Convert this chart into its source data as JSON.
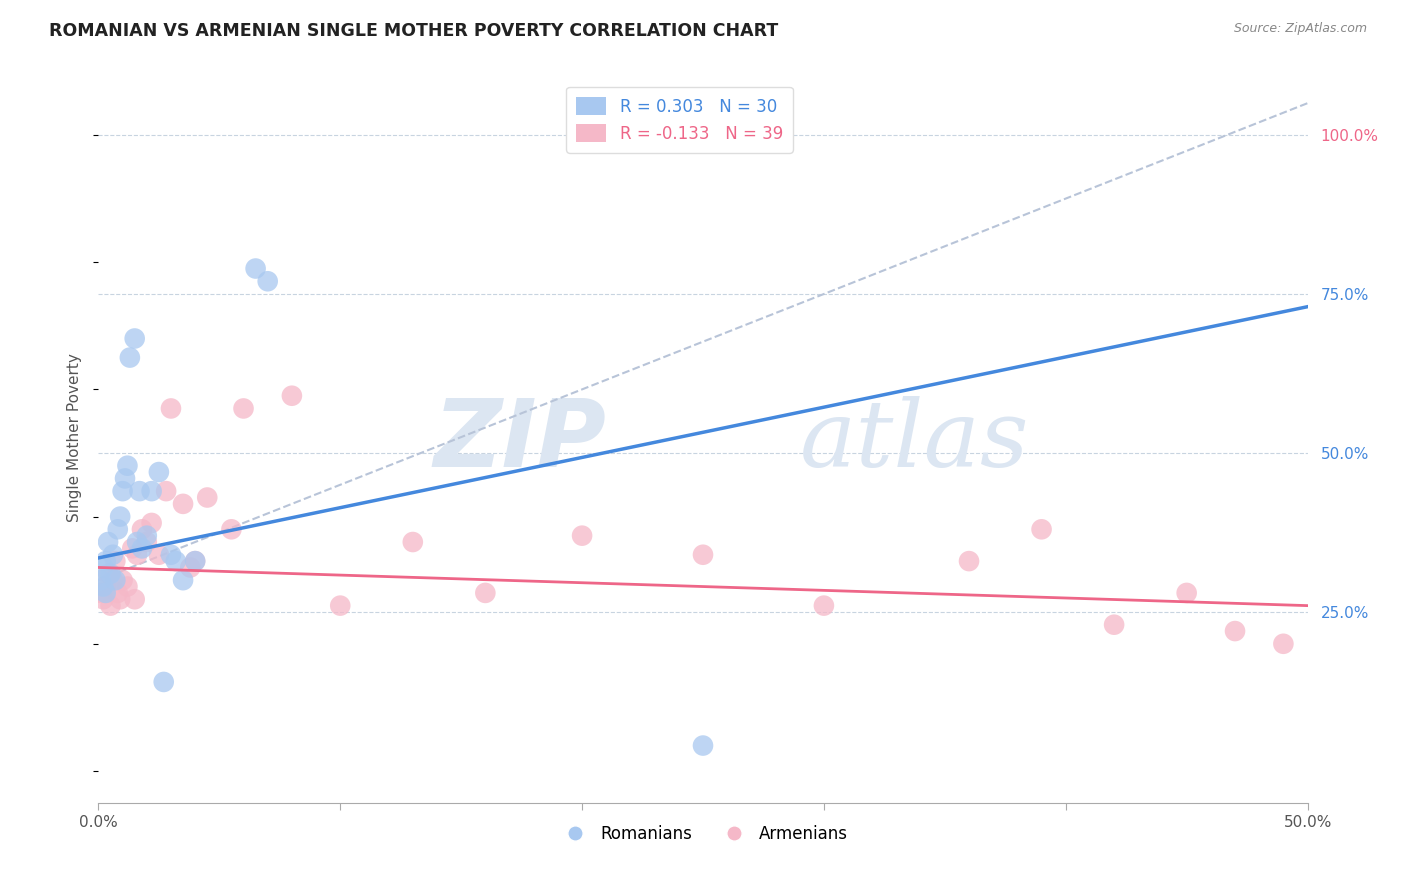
{
  "title": "ROMANIAN VS ARMENIAN SINGLE MOTHER POVERTY CORRELATION CHART",
  "source": "Source: ZipAtlas.com",
  "ylabel": "Single Mother Poverty",
  "right_yticks": [
    "100.0%",
    "75.0%",
    "50.0%",
    "25.0%"
  ],
  "right_ytick_values": [
    1.0,
    0.75,
    0.5,
    0.25
  ],
  "xlim": [
    0.0,
    0.5
  ],
  "ylim": [
    -0.05,
    1.1
  ],
  "romanian_R": 0.303,
  "romanian_N": 30,
  "armenian_R": -0.133,
  "armenian_N": 39,
  "watermark_zip": "ZIP",
  "watermark_atlas": "atlas",
  "romanian_color": "#a8c8f0",
  "armenian_color": "#f5b8c8",
  "romanian_line_color": "#4488dd",
  "armenian_line_color": "#ee6688",
  "diagonal_color": "#b8c4d8",
  "background_color": "#ffffff",
  "romanians_x": [
    0.001,
    0.002,
    0.002,
    0.003,
    0.003,
    0.004,
    0.005,
    0.006,
    0.007,
    0.008,
    0.009,
    0.01,
    0.011,
    0.012,
    0.013,
    0.015,
    0.016,
    0.017,
    0.018,
    0.02,
    0.022,
    0.025,
    0.027,
    0.03,
    0.032,
    0.035,
    0.04,
    0.065,
    0.07,
    0.25
  ],
  "romanians_y": [
    0.3,
    0.29,
    0.32,
    0.28,
    0.33,
    0.36,
    0.31,
    0.34,
    0.3,
    0.38,
    0.4,
    0.44,
    0.46,
    0.48,
    0.65,
    0.68,
    0.36,
    0.44,
    0.35,
    0.37,
    0.44,
    0.47,
    0.14,
    0.34,
    0.33,
    0.3,
    0.33,
    0.79,
    0.77,
    0.04
  ],
  "armenians_x": [
    0.001,
    0.002,
    0.003,
    0.004,
    0.005,
    0.006,
    0.007,
    0.008,
    0.009,
    0.01,
    0.012,
    0.014,
    0.015,
    0.016,
    0.018,
    0.02,
    0.022,
    0.025,
    0.028,
    0.03,
    0.035,
    0.038,
    0.04,
    0.045,
    0.055,
    0.06,
    0.08,
    0.1,
    0.13,
    0.16,
    0.2,
    0.25,
    0.3,
    0.36,
    0.39,
    0.42,
    0.45,
    0.47,
    0.49
  ],
  "armenians_y": [
    0.28,
    0.27,
    0.29,
    0.31,
    0.26,
    0.3,
    0.33,
    0.28,
    0.27,
    0.3,
    0.29,
    0.35,
    0.27,
    0.34,
    0.38,
    0.36,
    0.39,
    0.34,
    0.44,
    0.57,
    0.42,
    0.32,
    0.33,
    0.43,
    0.38,
    0.57,
    0.59,
    0.26,
    0.36,
    0.28,
    0.37,
    0.34,
    0.26,
    0.33,
    0.38,
    0.23,
    0.28,
    0.22,
    0.2
  ]
}
